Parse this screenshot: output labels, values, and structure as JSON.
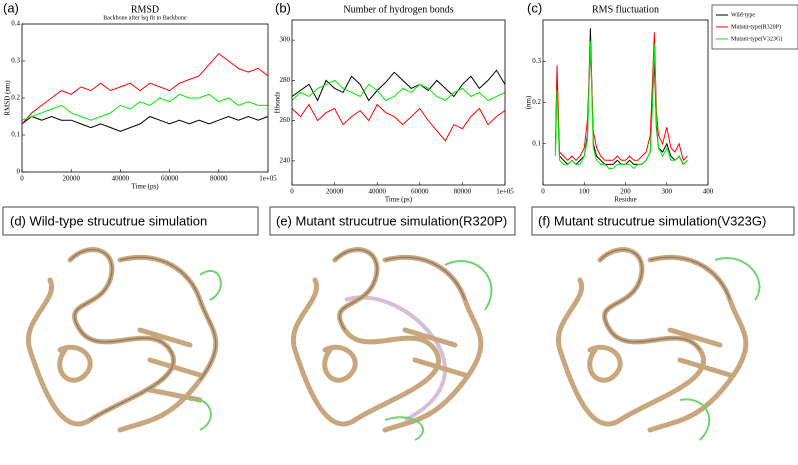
{
  "chart_data": [
    {
      "type": "line",
      "panel": "(a)",
      "title": "RMSD",
      "subtitle": "Backbone after lsq fit to Backbone",
      "xlabel": "Time (ps)",
      "ylabel": "RMSD (nm)",
      "x": [
        0,
        4000,
        8000,
        12000,
        16000,
        20000,
        24000,
        28000,
        32000,
        36000,
        40000,
        44000,
        48000,
        52000,
        56000,
        60000,
        64000,
        68000,
        72000,
        76000,
        80000,
        84000,
        88000,
        92000,
        96000,
        100000
      ],
      "xlim": [
        0,
        100000
      ],
      "xticks": [
        0,
        20000,
        40000,
        60000,
        80000,
        {
          "value": 100000,
          "label": "1e+05"
        }
      ],
      "ylim": [
        0,
        0.4
      ],
      "yticks": [
        0,
        0.1,
        0.2,
        0.3,
        0.4
      ],
      "series": [
        {
          "color": "#000000",
          "values": [
            0.13,
            0.15,
            0.14,
            0.15,
            0.14,
            0.14,
            0.13,
            0.12,
            0.13,
            0.12,
            0.11,
            0.12,
            0.13,
            0.15,
            0.14,
            0.13,
            0.14,
            0.13,
            0.14,
            0.13,
            0.14,
            0.15,
            0.14,
            0.15,
            0.14,
            0.15
          ]
        },
        {
          "color": "#ff0000",
          "values": [
            0.13,
            0.16,
            0.18,
            0.2,
            0.22,
            0.21,
            0.23,
            0.22,
            0.24,
            0.22,
            0.23,
            0.24,
            0.22,
            0.24,
            0.23,
            0.22,
            0.24,
            0.25,
            0.26,
            0.29,
            0.32,
            0.3,
            0.28,
            0.27,
            0.28,
            0.26
          ]
        },
        {
          "color": "#00ee00",
          "values": [
            0.14,
            0.15,
            0.16,
            0.17,
            0.18,
            0.16,
            0.15,
            0.14,
            0.15,
            0.16,
            0.18,
            0.17,
            0.19,
            0.18,
            0.2,
            0.19,
            0.21,
            0.2,
            0.2,
            0.21,
            0.19,
            0.2,
            0.18,
            0.19,
            0.18,
            0.18
          ]
        }
      ]
    },
    {
      "type": "line",
      "panel": "(b)",
      "title": "Number of hydrogen bonds",
      "xlabel": "Time (ps)",
      "ylabel": "Hbonds",
      "x": [
        0,
        4000,
        8000,
        12000,
        16000,
        20000,
        24000,
        28000,
        32000,
        36000,
        40000,
        44000,
        48000,
        52000,
        56000,
        60000,
        64000,
        68000,
        72000,
        76000,
        80000,
        84000,
        88000,
        92000,
        96000,
        100000
      ],
      "xlim": [
        0,
        100000
      ],
      "xticks": [
        0,
        20000,
        40000,
        60000,
        80000,
        {
          "value": 100000,
          "label": "1e+05"
        }
      ],
      "ylim": [
        228,
        310
      ],
      "yticks": [
        240,
        260,
        280,
        300
      ],
      "series": [
        {
          "color": "#000000",
          "values": [
            272,
            275,
            278,
            270,
            280,
            276,
            274,
            282,
            278,
            270,
            275,
            279,
            284,
            280,
            276,
            278,
            275,
            280,
            276,
            272,
            278,
            282,
            276,
            280,
            285,
            278
          ]
        },
        {
          "color": "#ff0000",
          "values": [
            266,
            262,
            268,
            260,
            264,
            266,
            258,
            262,
            265,
            260,
            268,
            264,
            262,
            258,
            262,
            266,
            260,
            255,
            250,
            258,
            256,
            262,
            266,
            258,
            262,
            265
          ]
        },
        {
          "color": "#00ee00",
          "values": [
            270,
            274,
            272,
            276,
            278,
            280,
            276,
            274,
            272,
            278,
            275,
            270,
            272,
            276,
            274,
            278,
            276,
            272,
            270,
            274,
            276,
            272,
            274,
            270,
            272,
            274
          ]
        }
      ]
    },
    {
      "type": "line",
      "panel": "(c)",
      "title": "RMS fluctuation",
      "xlabel": "Residue",
      "ylabel": "(nm)",
      "legend": "right",
      "x": [
        30,
        34,
        40,
        50,
        60,
        70,
        80,
        90,
        100,
        108,
        115,
        122,
        130,
        140,
        150,
        160,
        170,
        180,
        190,
        200,
        210,
        220,
        230,
        240,
        250,
        260,
        265,
        270,
        275,
        280,
        290,
        300,
        310,
        320,
        330,
        340,
        350
      ],
      "xlim": [
        0,
        400
      ],
      "xticks": [
        0,
        100,
        200,
        300,
        400
      ],
      "ylim": [
        0,
        0.4
      ],
      "yticks": [
        0.1,
        0.2,
        0.3
      ],
      "series": [
        {
          "name": "Wild-type",
          "color": "#000000",
          "values": [
            0.08,
            0.26,
            0.07,
            0.06,
            0.05,
            0.06,
            0.05,
            0.06,
            0.07,
            0.12,
            0.38,
            0.1,
            0.07,
            0.06,
            0.05,
            0.05,
            0.05,
            0.06,
            0.05,
            0.05,
            0.06,
            0.05,
            0.05,
            0.05,
            0.06,
            0.08,
            0.2,
            0.3,
            0.14,
            0.09,
            0.08,
            0.1,
            0.07,
            0.06,
            0.07,
            0.05,
            0.06
          ]
        },
        {
          "name": "Mutant-type(R320P)",
          "color": "#ff0000",
          "values": [
            0.09,
            0.29,
            0.08,
            0.07,
            0.06,
            0.07,
            0.06,
            0.07,
            0.09,
            0.16,
            0.33,
            0.13,
            0.09,
            0.07,
            0.06,
            0.06,
            0.06,
            0.07,
            0.06,
            0.06,
            0.07,
            0.06,
            0.06,
            0.07,
            0.08,
            0.12,
            0.24,
            0.37,
            0.18,
            0.12,
            0.1,
            0.14,
            0.09,
            0.08,
            0.1,
            0.06,
            0.07
          ]
        },
        {
          "name": "Mutant-type(V323G)",
          "color": "#00ee00",
          "values": [
            0.07,
            0.23,
            0.06,
            0.05,
            0.05,
            0.06,
            0.05,
            0.05,
            0.07,
            0.11,
            0.35,
            0.09,
            0.06,
            0.05,
            0.05,
            0.04,
            0.04,
            0.05,
            0.05,
            0.05,
            0.05,
            0.04,
            0.05,
            0.05,
            0.06,
            0.08,
            0.18,
            0.34,
            0.15,
            0.09,
            0.07,
            0.09,
            0.06,
            0.06,
            0.07,
            0.05,
            0.06
          ]
        }
      ]
    }
  ],
  "panels": [
    {
      "label": "(d) Wild-type strucutrue simulation"
    },
    {
      "label": "(e) Mutant strucutrue simulation(R320P)"
    },
    {
      "label": "(f) Mutant strucutrue simulation(V323G)"
    }
  ]
}
